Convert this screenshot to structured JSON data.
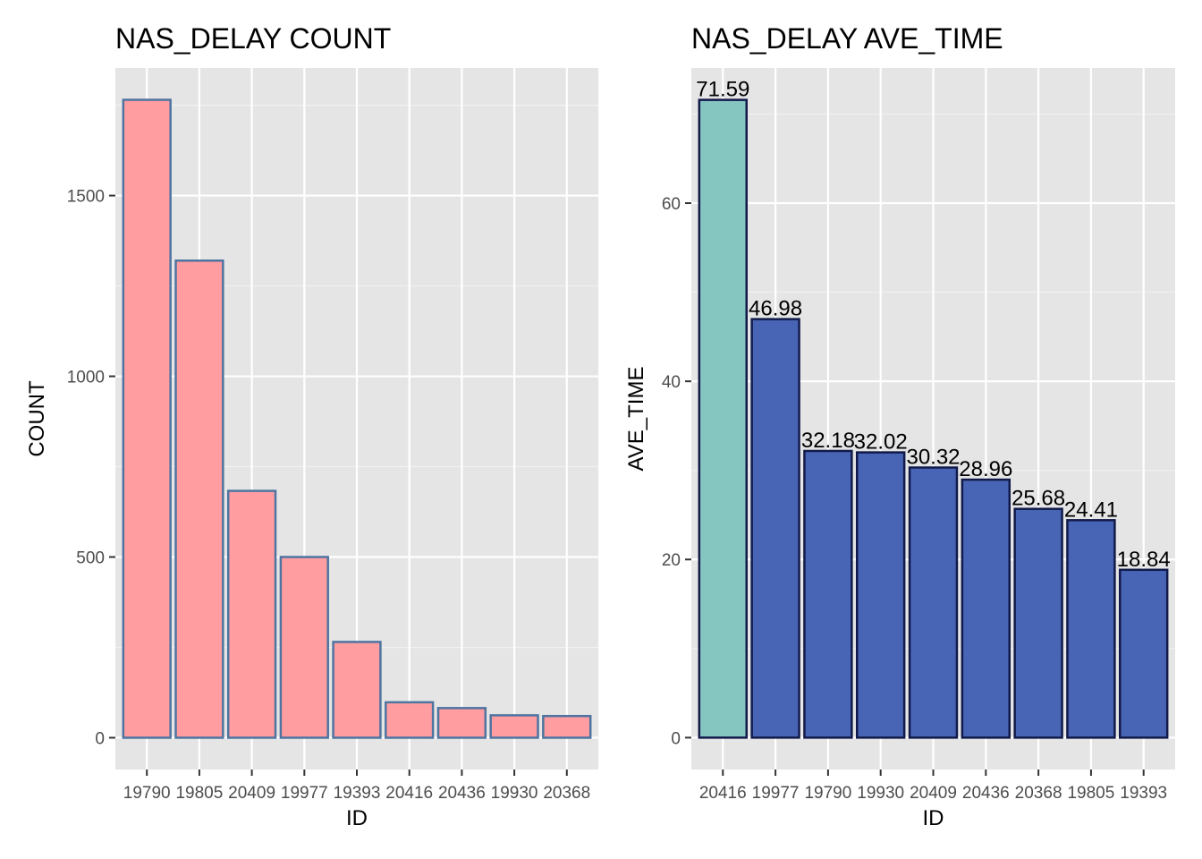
{
  "chart_data": [
    {
      "type": "bar",
      "title": "NAS_DELAY COUNT",
      "xlabel": "ID",
      "ylabel": "COUNT",
      "categories": [
        "19790",
        "19805",
        "20409",
        "19977",
        "19393",
        "20416",
        "20436",
        "19930",
        "20368"
      ],
      "values": [
        1765,
        1320,
        683,
        500,
        265,
        98,
        82,
        62,
        60
      ],
      "yticks": [
        0,
        500,
        1000,
        1500
      ],
      "ylim": [
        -88,
        1853
      ],
      "grid": true,
      "fill_color": "#FF9DA1",
      "outline_color": "#4F74A0",
      "panel_color": "#E5E5E5"
    },
    {
      "type": "bar",
      "title": "NAS_DELAY AVE_TIME",
      "xlabel": "ID",
      "ylabel": "AVE_TIME",
      "categories": [
        "20416",
        "19977",
        "19790",
        "19930",
        "20409",
        "20436",
        "20368",
        "19805",
        "19393"
      ],
      "values": [
        71.59,
        46.98,
        32.18,
        32.02,
        30.32,
        28.96,
        25.68,
        24.41,
        18.84
      ],
      "data_labels": [
        "71.59",
        "46.98",
        "32.18",
        "32.02",
        "30.32",
        "28.96",
        "25.68",
        "24.41",
        "18.84"
      ],
      "yticks": [
        0,
        20,
        40,
        60
      ],
      "ylim": [
        -3.58,
        75.17
      ],
      "grid": true,
      "fill_colors": [
        "#85C6C1",
        "#4864B4",
        "#4864B4",
        "#4864B4",
        "#4864B4",
        "#4864B4",
        "#4864B4",
        "#4864B4",
        "#4864B4"
      ],
      "outline_color": "#111A4A",
      "panel_color": "#E5E5E5"
    }
  ]
}
